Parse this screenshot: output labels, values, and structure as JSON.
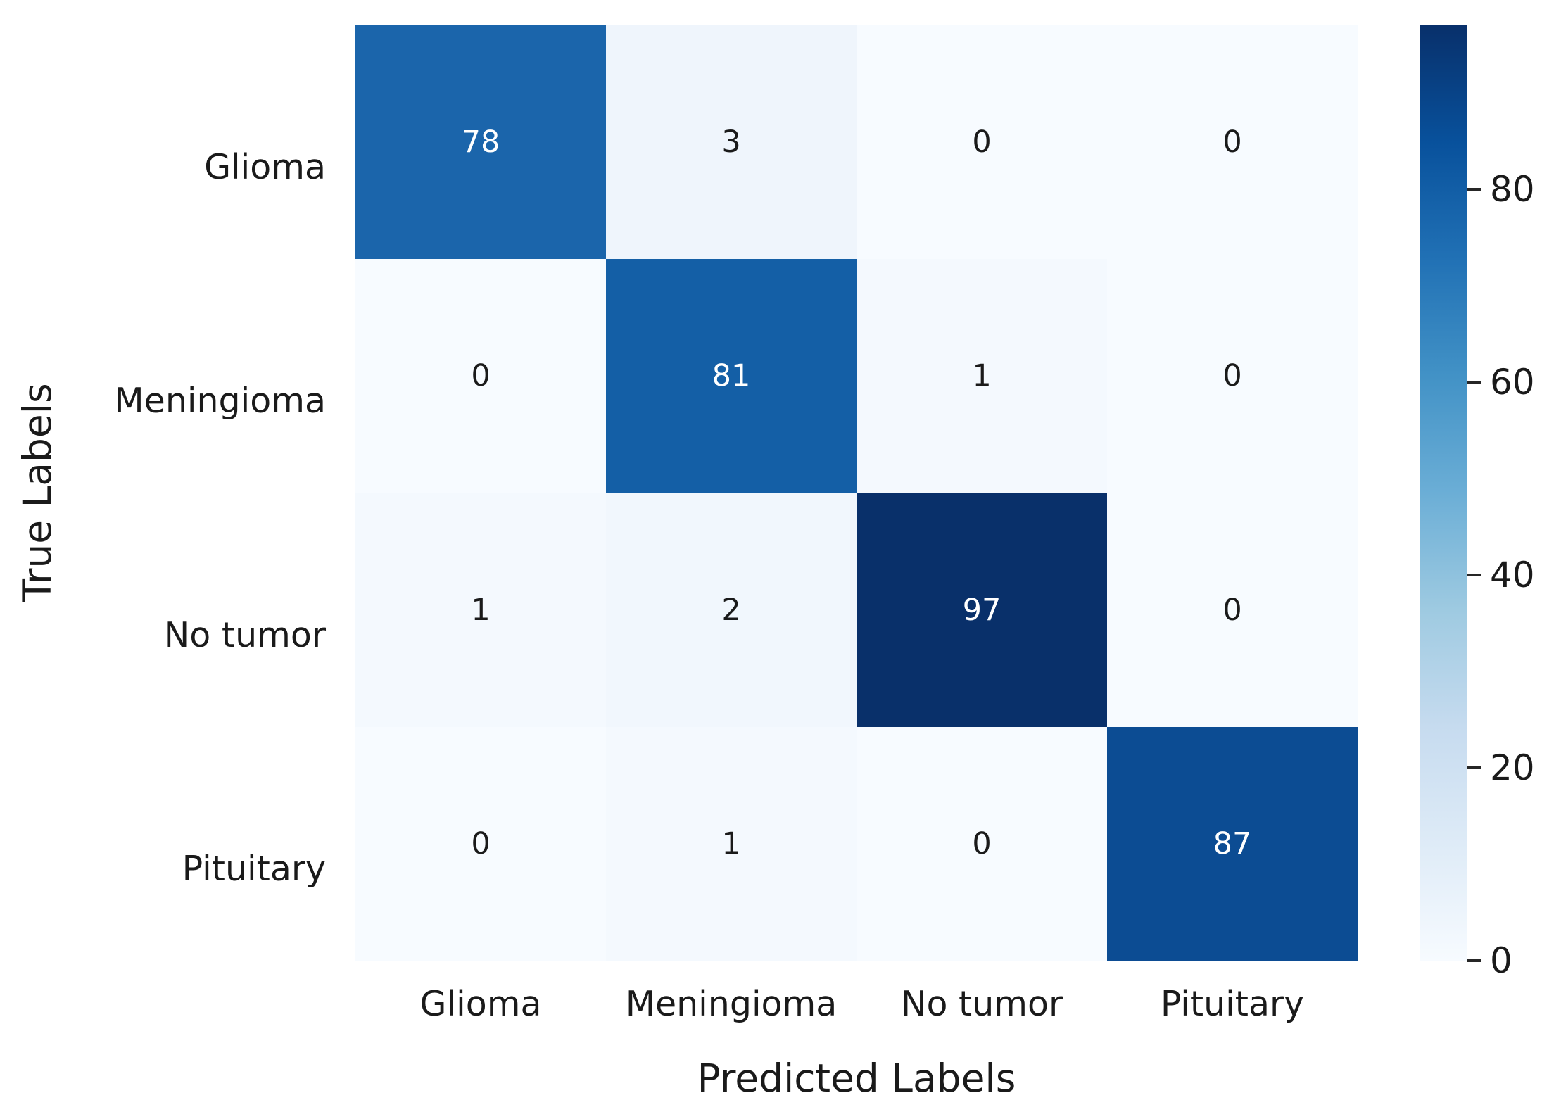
{
  "chart_data": {
    "type": "heatmap",
    "title": "",
    "xlabel": "Predicted Labels",
    "ylabel": "True Labels",
    "x_categories": [
      "Glioma",
      "Meningioma",
      "No tumor",
      "Pituitary"
    ],
    "y_categories": [
      "Glioma",
      "Meningioma",
      "No tumor",
      "Pituitary"
    ],
    "matrix": [
      [
        78,
        3,
        0,
        0
      ],
      [
        0,
        81,
        1,
        0
      ],
      [
        1,
        2,
        97,
        0
      ],
      [
        0,
        1,
        0,
        87
      ]
    ],
    "vmin": 0,
    "vmax": 97,
    "colormap": "Blues",
    "grid": false,
    "legend_position": "right-colorbar",
    "colorbar_ticks": [
      {
        "label": "80",
        "value": 80
      },
      {
        "label": "60",
        "value": 60
      },
      {
        "label": "40",
        "value": 40
      },
      {
        "label": "20",
        "value": 20
      },
      {
        "label": "0",
        "value": 0
      }
    ]
  },
  "colors": {
    "background": "#ffffff",
    "text": "#1a1a1a",
    "annot_on_dark": "#ffffff",
    "annot_on_light": "#1a1a1a",
    "cell_fill": [
      [
        "#1b65ab",
        "#eff5fc",
        "#f7fbff",
        "#f7fbff"
      ],
      [
        "#f7fbff",
        "#145fa6",
        "#f4f9fe",
        "#f7fbff"
      ],
      [
        "#f4f9fe",
        "#f1f7fd",
        "#09306a",
        "#f7fbff"
      ],
      [
        "#f7fbff",
        "#f4f9fe",
        "#f7fbff",
        "#0c4c93"
      ]
    ],
    "cell_text": [
      [
        "#ffffff",
        "#1a1a1a",
        "#1a1a1a",
        "#1a1a1a"
      ],
      [
        "#1a1a1a",
        "#ffffff",
        "#1a1a1a",
        "#1a1a1a"
      ],
      [
        "#1a1a1a",
        "#1a1a1a",
        "#ffffff",
        "#1a1a1a"
      ],
      [
        "#1a1a1a",
        "#1a1a1a",
        "#1a1a1a",
        "#ffffff"
      ]
    ],
    "colorbar_gradient": "linear-gradient(to top, #f7fbff 0%, #deebf7 12.5%, #c6dbef 25%, #9ecae1 37.5%, #6baed6 50%, #4292c6 62.5%, #2171b5 75%, #08519c 87.5%, #08306b 100%)"
  }
}
